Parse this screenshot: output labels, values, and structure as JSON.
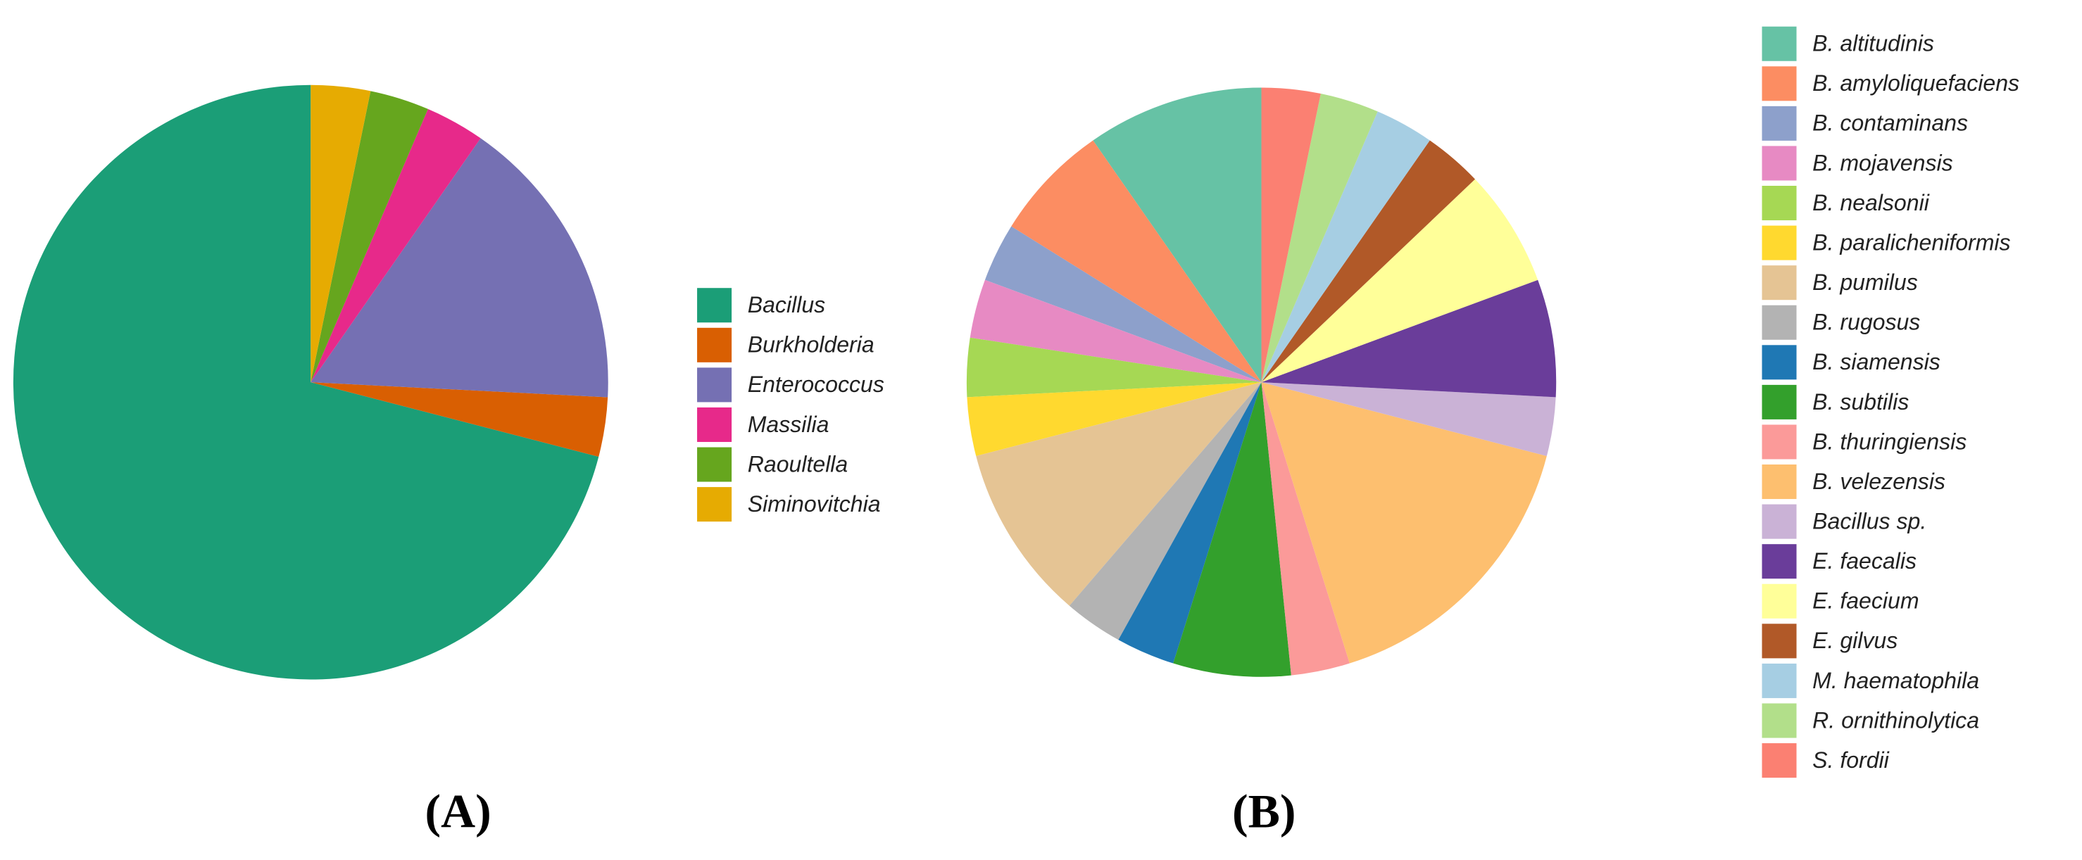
{
  "chart_data": [
    {
      "type": "pie",
      "label": "(A)",
      "categories": [
        "Bacillus",
        "Burkholderia",
        "Enterococcus",
        "Massilia",
        "Raoultella",
        "Siminovitchia"
      ],
      "values": [
        22,
        1,
        5,
        1,
        1,
        1
      ],
      "colors": [
        "#1b9e77",
        "#d95f02",
        "#7570b3",
        "#e7298a",
        "#66a61e",
        "#e6ab02"
      ]
    },
    {
      "type": "pie",
      "label": "(B)",
      "categories": [
        "B. altitudinis",
        "B. amyloliquefaciens",
        "B. contaminans",
        "B. mojavensis",
        "B. nealsonii",
        "B. paralicheniformis",
        "B. pumilus",
        "B. rugosus",
        "B. siamensis",
        "B. subtilis",
        "B. thuringiensis",
        "B. velezensis",
        "Bacillus sp.",
        "E. faecalis",
        "E. faecium",
        "E. gilvus",
        "M. haematophila",
        "R. ornithinolytica",
        "S. fordii"
      ],
      "values": [
        3,
        2,
        1,
        1,
        1,
        1,
        3,
        1,
        1,
        2,
        1,
        5,
        1,
        2,
        2,
        1,
        1,
        1,
        1
      ],
      "colors": [
        "#66c2a5",
        "#fc8d62",
        "#8da0cb",
        "#e78ac3",
        "#a6d854",
        "#ffd92f",
        "#e5c494",
        "#b3b3b3",
        "#1f78b4",
        "#33a02c",
        "#fb9a99",
        "#fdbf6f",
        "#cab2d6",
        "#6a3d9a",
        "#ffff99",
        "#b15928",
        "#a6cee3",
        "#b2df8a",
        "#fb8072"
      ]
    }
  ]
}
